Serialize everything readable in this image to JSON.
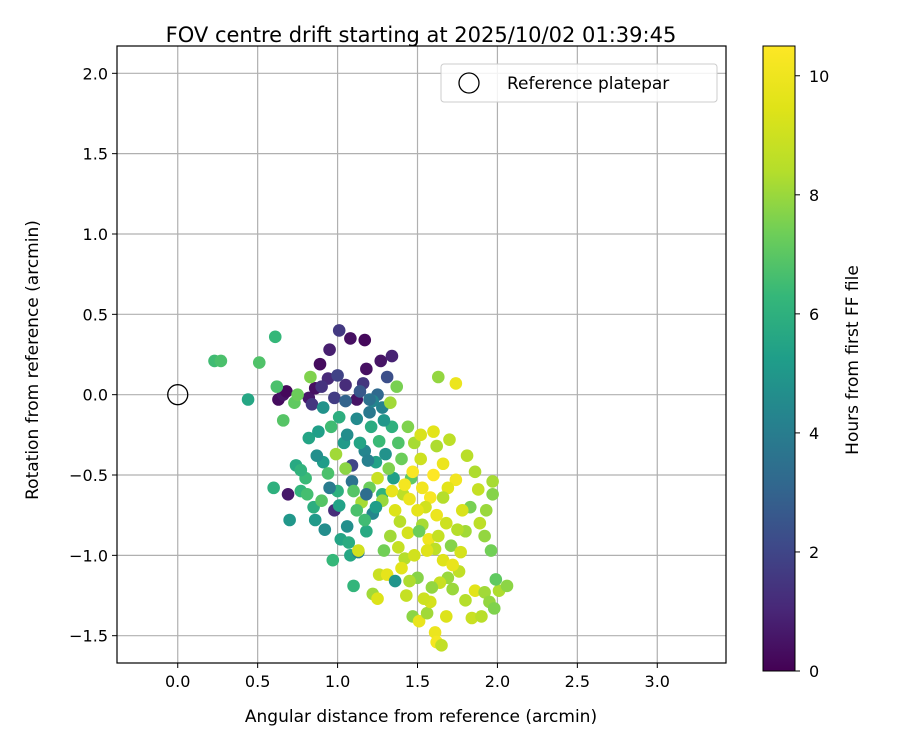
{
  "chart_data": {
    "type": "scatter",
    "title": "FOV centre drift starting at 2025/10/02 01:39:45",
    "xlabel": "Angular distance from reference (arcmin)",
    "ylabel": "Rotation from reference (arcmin)",
    "xlim": [
      -0.38,
      3.43
    ],
    "ylim": [
      -1.67,
      2.17
    ],
    "xticks": [
      "0.0",
      "0.5",
      "1.0",
      "1.5",
      "2.0",
      "2.5",
      "3.0"
    ],
    "yticks": [
      "2.0",
      "1.5",
      "1.0",
      "0.5",
      "0.0",
      "−0.5",
      "−1.0",
      "−1.5"
    ],
    "grid": true,
    "legend": {
      "label": "Reference platepar",
      "position": "top-right"
    },
    "reference_point": {
      "x": 0.0,
      "y": 0.0
    },
    "colorbar": {
      "label": "Hours from first FF file",
      "colormap": "viridis",
      "range": [
        0,
        10.5
      ],
      "ticks": [
        "0",
        "2",
        "4",
        "6",
        "8",
        "10"
      ]
    },
    "points": [
      {
        "x": 0.63,
        "y": -0.03,
        "h": 0.3
      },
      {
        "x": 0.66,
        "y": 0.0,
        "h": 0.5
      },
      {
        "x": 0.68,
        "y": 0.02,
        "h": 0.2
      },
      {
        "x": 0.82,
        "y": -0.02,
        "h": 0.6
      },
      {
        "x": 0.86,
        "y": 0.04,
        "h": 0.4
      },
      {
        "x": 0.89,
        "y": 0.19,
        "h": 0.3
      },
      {
        "x": 0.95,
        "y": 0.28,
        "h": 0.8
      },
      {
        "x": 1.01,
        "y": 0.4,
        "h": 1.6
      },
      {
        "x": 1.08,
        "y": 0.35,
        "h": 0.4
      },
      {
        "x": 1.17,
        "y": 0.34,
        "h": 0.2
      },
      {
        "x": 1.27,
        "y": 0.21,
        "h": 0.5
      },
      {
        "x": 1.34,
        "y": 0.24,
        "h": 0.9
      },
      {
        "x": 1.18,
        "y": 0.16,
        "h": 0.4
      },
      {
        "x": 0.94,
        "y": 0.1,
        "h": 1.1
      },
      {
        "x": 0.9,
        "y": 0.05,
        "h": 1.4
      },
      {
        "x": 1.0,
        "y": 0.12,
        "h": 1.9
      },
      {
        "x": 1.05,
        "y": 0.06,
        "h": 1.2
      },
      {
        "x": 0.98,
        "y": -0.02,
        "h": 1.7
      },
      {
        "x": 0.84,
        "y": -0.06,
        "h": 1.5
      },
      {
        "x": 1.12,
        "y": -0.03,
        "h": 0.5
      },
      {
        "x": 1.16,
        "y": 0.07,
        "h": 1.5
      },
      {
        "x": 1.31,
        "y": 0.11,
        "h": 2.3
      },
      {
        "x": 1.25,
        "y": 0.0,
        "h": 3.2
      },
      {
        "x": 0.69,
        "y": -0.62,
        "h": 0.6
      },
      {
        "x": 0.98,
        "y": -0.72,
        "h": 1.2
      },
      {
        "x": 1.09,
        "y": -0.44,
        "h": 2.0
      },
      {
        "x": 0.23,
        "y": 0.21,
        "h": 6.5
      },
      {
        "x": 0.27,
        "y": 0.21,
        "h": 6.7
      },
      {
        "x": 0.51,
        "y": 0.2,
        "h": 6.8
      },
      {
        "x": 0.61,
        "y": 0.36,
        "h": 6.3
      },
      {
        "x": 0.44,
        "y": -0.03,
        "h": 5.6
      },
      {
        "x": 0.62,
        "y": 0.05,
        "h": 6.7
      },
      {
        "x": 0.73,
        "y": -0.05,
        "h": 7.1
      },
      {
        "x": 0.66,
        "y": -0.16,
        "h": 6.9
      },
      {
        "x": 0.75,
        "y": 0.0,
        "h": 7.3
      },
      {
        "x": 0.83,
        "y": 0.11,
        "h": 7.6
      },
      {
        "x": 0.6,
        "y": -0.58,
        "h": 6.0
      },
      {
        "x": 0.7,
        "y": -0.78,
        "h": 5.0
      },
      {
        "x": 0.77,
        "y": -0.6,
        "h": 6.2
      },
      {
        "x": 0.82,
        "y": -0.27,
        "h": 5.5
      },
      {
        "x": 0.91,
        "y": -0.08,
        "h": 4.8
      },
      {
        "x": 0.96,
        "y": -0.2,
        "h": 6.5
      },
      {
        "x": 1.04,
        "y": -0.3,
        "h": 5.1
      },
      {
        "x": 1.12,
        "y": -0.15,
        "h": 4.5
      },
      {
        "x": 1.2,
        "y": -0.11,
        "h": 3.8
      },
      {
        "x": 1.28,
        "y": -0.08,
        "h": 4.2
      },
      {
        "x": 1.37,
        "y": 0.05,
        "h": 7.5
      },
      {
        "x": 1.33,
        "y": -0.05,
        "h": 8.1
      },
      {
        "x": 1.21,
        "y": -0.2,
        "h": 5.8
      },
      {
        "x": 1.17,
        "y": -0.35,
        "h": 4.3
      },
      {
        "x": 1.24,
        "y": -0.42,
        "h": 5.4
      },
      {
        "x": 1.09,
        "y": -0.54,
        "h": 3.6
      },
      {
        "x": 1.0,
        "y": -0.6,
        "h": 6.0
      },
      {
        "x": 0.91,
        "y": -0.42,
        "h": 5.2
      },
      {
        "x": 0.87,
        "y": -0.38,
        "h": 4.7
      },
      {
        "x": 0.8,
        "y": -0.52,
        "h": 6.4
      },
      {
        "x": 0.85,
        "y": -0.7,
        "h": 5.9
      },
      {
        "x": 0.92,
        "y": -0.84,
        "h": 4.6
      },
      {
        "x": 1.02,
        "y": -0.9,
        "h": 5.5
      },
      {
        "x": 0.97,
        "y": -1.03,
        "h": 6.3
      },
      {
        "x": 1.08,
        "y": -1.0,
        "h": 5.6
      },
      {
        "x": 1.13,
        "y": -0.98,
        "h": 4.0
      },
      {
        "x": 1.18,
        "y": -0.85,
        "h": 5.7
      },
      {
        "x": 1.22,
        "y": -0.74,
        "h": 4.4
      },
      {
        "x": 1.28,
        "y": -0.62,
        "h": 6.1
      },
      {
        "x": 1.35,
        "y": -0.52,
        "h": 5.3
      },
      {
        "x": 1.4,
        "y": -0.4,
        "h": 7.3
      },
      {
        "x": 1.48,
        "y": -0.3,
        "h": 8.2
      },
      {
        "x": 1.44,
        "y": -0.2,
        "h": 7.6
      },
      {
        "x": 1.52,
        "y": -0.25,
        "h": 9.3
      },
      {
        "x": 1.6,
        "y": -0.23,
        "h": 9.6
      },
      {
        "x": 1.62,
        "y": -0.32,
        "h": 8.3
      },
      {
        "x": 1.7,
        "y": -0.28,
        "h": 8.6
      },
      {
        "x": 1.81,
        "y": -0.38,
        "h": 8.5
      },
      {
        "x": 1.74,
        "y": 0.07,
        "h": 9.9
      },
      {
        "x": 1.63,
        "y": 0.11,
        "h": 7.9
      },
      {
        "x": 1.52,
        "y": -0.4,
        "h": 9.0
      },
      {
        "x": 1.46,
        "y": -0.52,
        "h": 7.1
      },
      {
        "x": 1.41,
        "y": -0.62,
        "h": 8.6
      },
      {
        "x": 1.36,
        "y": -0.72,
        "h": 9.4
      },
      {
        "x": 1.33,
        "y": -0.88,
        "h": 8.1
      },
      {
        "x": 1.29,
        "y": -0.97,
        "h": 7.4
      },
      {
        "x": 1.26,
        "y": -1.12,
        "h": 8.9
      },
      {
        "x": 1.31,
        "y": -1.12,
        "h": 9.7
      },
      {
        "x": 1.36,
        "y": -1.16,
        "h": 4.9
      },
      {
        "x": 1.42,
        "y": -1.02,
        "h": 8.4
      },
      {
        "x": 1.48,
        "y": -1.0,
        "h": 9.1
      },
      {
        "x": 1.5,
        "y": -1.14,
        "h": 7.7
      },
      {
        "x": 1.43,
        "y": -1.25,
        "h": 8.8
      },
      {
        "x": 1.47,
        "y": -1.38,
        "h": 7.8
      },
      {
        "x": 1.51,
        "y": -1.41,
        "h": 9.8
      },
      {
        "x": 1.56,
        "y": -1.36,
        "h": 8.1
      },
      {
        "x": 1.58,
        "y": -1.29,
        "h": 9.2
      },
      {
        "x": 1.61,
        "y": -1.48,
        "h": 9.9
      },
      {
        "x": 1.62,
        "y": -1.54,
        "h": 10.2
      },
      {
        "x": 1.65,
        "y": -1.56,
        "h": 8.7
      },
      {
        "x": 1.68,
        "y": -1.38,
        "h": 9.4
      },
      {
        "x": 1.72,
        "y": -1.21,
        "h": 8.0
      },
      {
        "x": 1.76,
        "y": -1.1,
        "h": 8.7
      },
      {
        "x": 1.8,
        "y": -1.28,
        "h": 8.4
      },
      {
        "x": 1.84,
        "y": -1.39,
        "h": 8.9
      },
      {
        "x": 1.86,
        "y": -1.22,
        "h": 9.6
      },
      {
        "x": 1.9,
        "y": -1.38,
        "h": 8.5
      },
      {
        "x": 1.92,
        "y": -1.23,
        "h": 8.1
      },
      {
        "x": 1.95,
        "y": -1.29,
        "h": 7.9
      },
      {
        "x": 1.98,
        "y": -1.33,
        "h": 7.6
      },
      {
        "x": 2.01,
        "y": -1.22,
        "h": 8.3
      },
      {
        "x": 2.06,
        "y": -1.19,
        "h": 7.8
      },
      {
        "x": 1.99,
        "y": -1.15,
        "h": 7.1
      },
      {
        "x": 1.96,
        "y": -0.97,
        "h": 7.4
      },
      {
        "x": 1.92,
        "y": -0.88,
        "h": 7.9
      },
      {
        "x": 1.89,
        "y": -0.8,
        "h": 8.6
      },
      {
        "x": 1.93,
        "y": -0.72,
        "h": 8.0
      },
      {
        "x": 1.97,
        "y": -0.62,
        "h": 7.7
      },
      {
        "x": 1.97,
        "y": -0.54,
        "h": 8.2
      },
      {
        "x": 1.88,
        "y": -0.59,
        "h": 8.8
      },
      {
        "x": 1.86,
        "y": -0.48,
        "h": 8.3
      },
      {
        "x": 1.83,
        "y": -0.7,
        "h": 7.5
      },
      {
        "x": 1.8,
        "y": -0.85,
        "h": 8.1
      },
      {
        "x": 1.78,
        "y": -0.72,
        "h": 9.3
      },
      {
        "x": 1.74,
        "y": -0.53,
        "h": 10.1
      },
      {
        "x": 1.69,
        "y": -0.58,
        "h": 9.6
      },
      {
        "x": 1.66,
        "y": -0.64,
        "h": 8.4
      },
      {
        "x": 1.62,
        "y": -0.75,
        "h": 9.9
      },
      {
        "x": 1.58,
        "y": -0.64,
        "h": 10.3
      },
      {
        "x": 1.55,
        "y": -0.7,
        "h": 9.1
      },
      {
        "x": 1.53,
        "y": -0.81,
        "h": 8.2
      },
      {
        "x": 1.5,
        "y": -0.72,
        "h": 9.7
      },
      {
        "x": 1.57,
        "y": -0.9,
        "h": 10.0
      },
      {
        "x": 1.61,
        "y": -0.96,
        "h": 8.6
      },
      {
        "x": 1.66,
        "y": -1.03,
        "h": 9.5
      },
      {
        "x": 1.69,
        "y": -1.14,
        "h": 8.0
      },
      {
        "x": 1.72,
        "y": -1.06,
        "h": 9.8
      },
      {
        "x": 1.64,
        "y": -1.17,
        "h": 8.9
      },
      {
        "x": 1.59,
        "y": -1.2,
        "h": 7.9
      },
      {
        "x": 1.54,
        "y": -1.27,
        "h": 9.0
      },
      {
        "x": 1.45,
        "y": -1.16,
        "h": 8.3
      },
      {
        "x": 1.4,
        "y": -1.08,
        "h": 9.6
      },
      {
        "x": 1.38,
        "y": -0.95,
        "h": 8.8
      },
      {
        "x": 1.44,
        "y": -0.86,
        "h": 9.2
      },
      {
        "x": 1.39,
        "y": -0.79,
        "h": 8.5
      },
      {
        "x": 1.34,
        "y": -0.6,
        "h": 9.8
      },
      {
        "x": 1.28,
        "y": -0.66,
        "h": 8.0
      },
      {
        "x": 1.32,
        "y": -0.46,
        "h": 7.6
      },
      {
        "x": 1.25,
        "y": -0.52,
        "h": 8.9
      },
      {
        "x": 1.2,
        "y": -0.58,
        "h": 7.3
      },
      {
        "x": 1.15,
        "y": -0.67,
        "h": 8.2
      },
      {
        "x": 1.1,
        "y": -0.6,
        "h": 6.9
      },
      {
        "x": 1.05,
        "y": -0.46,
        "h": 7.8
      },
      {
        "x": 0.99,
        "y": -0.37,
        "h": 8.1
      },
      {
        "x": 0.94,
        "y": -0.49,
        "h": 6.7
      },
      {
        "x": 1.47,
        "y": -0.48,
        "h": 10.4
      },
      {
        "x": 1.42,
        "y": -0.56,
        "h": 10.2
      },
      {
        "x": 1.6,
        "y": -0.5,
        "h": 10.5
      },
      {
        "x": 1.66,
        "y": -0.43,
        "h": 9.9
      },
      {
        "x": 1.1,
        "y": -1.19,
        "h": 6.2
      },
      {
        "x": 1.22,
        "y": -1.24,
        "h": 8.1
      },
      {
        "x": 1.25,
        "y": -1.27,
        "h": 9.4
      },
      {
        "x": 1.13,
        "y": -0.97,
        "h": 9.1
      },
      {
        "x": 1.07,
        "y": -0.92,
        "h": 5.8
      },
      {
        "x": 0.81,
        "y": -0.62,
        "h": 6.6
      },
      {
        "x": 0.74,
        "y": -0.44,
        "h": 5.7
      },
      {
        "x": 0.77,
        "y": -0.47,
        "h": 6.1
      },
      {
        "x": 0.88,
        "y": -0.23,
        "h": 5.3
      },
      {
        "x": 1.01,
        "y": -0.14,
        "h": 5.9
      },
      {
        "x": 1.06,
        "y": -0.25,
        "h": 4.6
      },
      {
        "x": 1.14,
        "y": -0.3,
        "h": 5.5
      },
      {
        "x": 1.19,
        "y": -0.41,
        "h": 4.1
      },
      {
        "x": 1.26,
        "y": -0.29,
        "h": 6.4
      },
      {
        "x": 1.3,
        "y": -0.37,
        "h": 4.8
      },
      {
        "x": 1.24,
        "y": -0.7,
        "h": 5.2
      },
      {
        "x": 1.17,
        "y": -0.78,
        "h": 6.5
      },
      {
        "x": 1.06,
        "y": -0.82,
        "h": 4.7
      },
      {
        "x": 1.01,
        "y": -0.69,
        "h": 5.4
      },
      {
        "x": 0.95,
        "y": -0.58,
        "h": 3.9
      },
      {
        "x": 0.9,
        "y": -0.66,
        "h": 6.9
      },
      {
        "x": 0.86,
        "y": -0.78,
        "h": 5.1
      },
      {
        "x": 1.12,
        "y": -0.72,
        "h": 6.7
      },
      {
        "x": 1.18,
        "y": -0.62,
        "h": 3.4
      },
      {
        "x": 1.34,
        "y": -0.2,
        "h": 6.0
      },
      {
        "x": 1.29,
        "y": -0.16,
        "h": 5.0
      },
      {
        "x": 1.22,
        "y": -0.04,
        "h": 4.3
      },
      {
        "x": 1.05,
        "y": -0.04,
        "h": 3.0
      },
      {
        "x": 1.14,
        "y": 0.02,
        "h": 2.6
      },
      {
        "x": 1.2,
        "y": -0.03,
        "h": 3.5
      },
      {
        "x": 1.38,
        "y": -0.3,
        "h": 6.8
      },
      {
        "x": 1.45,
        "y": -0.65,
        "h": 9.9
      },
      {
        "x": 1.53,
        "y": -0.58,
        "h": 10.1
      },
      {
        "x": 1.56,
        "y": -0.97,
        "h": 9.5
      },
      {
        "x": 1.51,
        "y": -0.85,
        "h": 7.3
      },
      {
        "x": 1.63,
        "y": -0.88,
        "h": 8.8
      },
      {
        "x": 1.68,
        "y": -0.8,
        "h": 9.0
      },
      {
        "x": 1.71,
        "y": -0.94,
        "h": 7.7
      },
      {
        "x": 1.75,
        "y": -0.84,
        "h": 8.4
      },
      {
        "x": 1.77,
        "y": -0.98,
        "h": 9.2
      }
    ]
  }
}
